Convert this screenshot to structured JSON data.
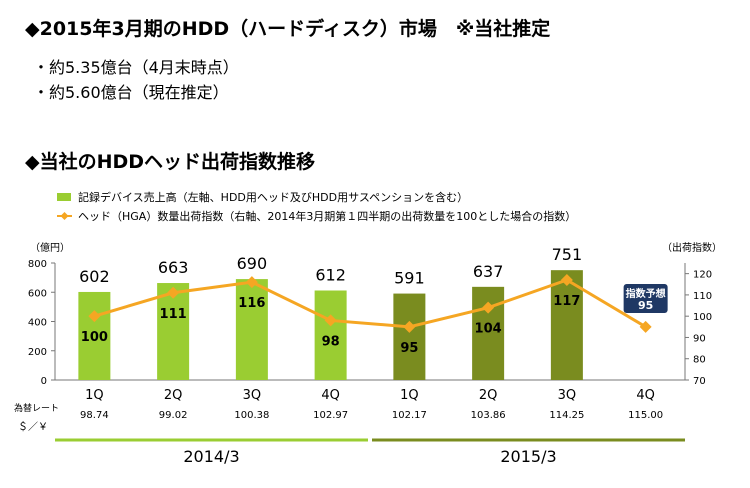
{
  "header": {
    "title": "◆2015年3月期のHDD（ハードディスク）市場　※当社推定",
    "bullets": [
      "・約5.35億台（4月末時点）",
      "・約5.60億台（現在推定）"
    ],
    "section_title": "◆当社のHDDヘッド出荷指数推移"
  },
  "chart_data": {
    "type": "bar",
    "categories": [
      "1Q",
      "2Q",
      "3Q",
      "4Q",
      "1Q",
      "2Q",
      "3Q",
      "4Q"
    ],
    "series": [
      {
        "name": "記録デバイス売上高（左軸、HDD用ヘッド及びHDD用サスペンションを含む）",
        "type": "bar",
        "values": [
          602,
          663,
          690,
          612,
          591,
          637,
          751,
          null
        ],
        "value_labels": [
          "602",
          "663",
          "690",
          "612",
          "591",
          "637",
          "751",
          ""
        ],
        "colors": [
          "#9acd32",
          "#9acd32",
          "#9acd32",
          "#9acd32",
          "#7a8c1f",
          "#7a8c1f",
          "#7a8c1f",
          ""
        ]
      },
      {
        "name": "ヘッド（HGA）数量出荷指数（右軸、2014年3月期第１四半期の出荷数量を100とした場合の指数）",
        "type": "line",
        "values": [
          100,
          111,
          116,
          98,
          95,
          104,
          117,
          95
        ],
        "value_labels": [
          "100",
          "111",
          "116",
          "98",
          "95",
          "104",
          "117",
          ""
        ],
        "color": "#f5a623"
      }
    ],
    "ylabel": "（億円）",
    "y2label": "（出荷指数）",
    "ylim": [
      0,
      800
    ],
    "yticks": [
      "0",
      "200",
      "400",
      "600",
      "800"
    ],
    "y2lim": [
      70,
      125
    ],
    "y2ticks": [
      "70",
      "80",
      "90",
      "100",
      "110",
      "120"
    ],
    "forecast_callout": {
      "label": "指数予想",
      "value": "95"
    },
    "exchange_rate": {
      "label_line1": "為替レート",
      "label_line2": "＄／￥",
      "values": [
        "98.74",
        "99.02",
        "100.38",
        "102.97",
        "102.17",
        "103.86",
        "114.25",
        "115.00"
      ]
    },
    "periods": [
      {
        "label": "2014/3",
        "color": "#9acd32"
      },
      {
        "label": "2015/3",
        "color": "#7a8c1f"
      }
    ]
  }
}
